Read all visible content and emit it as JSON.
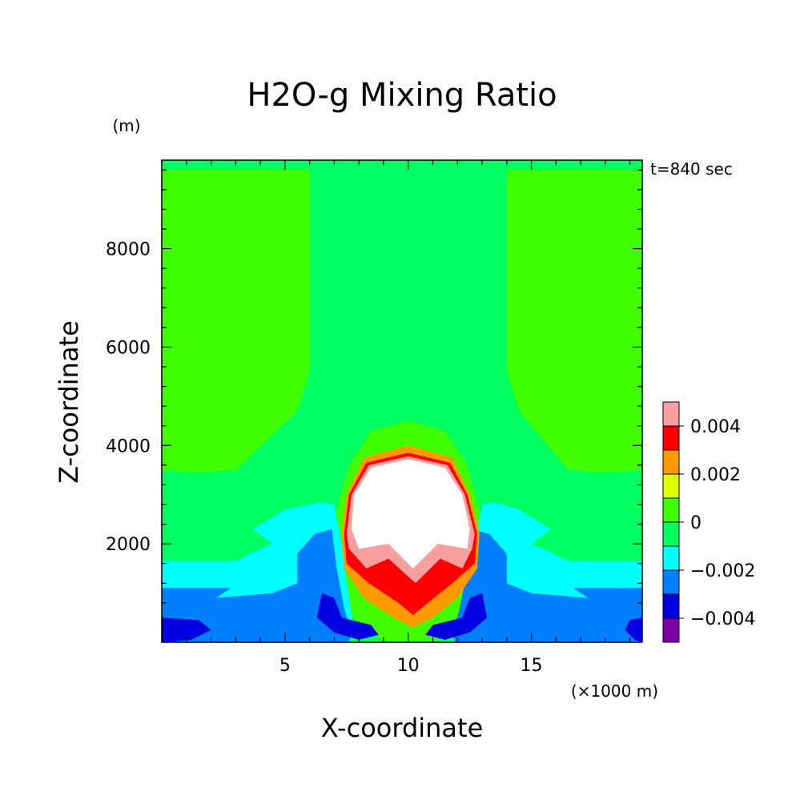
{
  "chart_data": {
    "type": "heatmap",
    "title": "H2O-g Mixing Ratio",
    "xlabel": "X-coordinate",
    "ylabel": "Z-coordinate",
    "x_unit": "(×1000 m)",
    "y_unit": "(m)",
    "time_label": "t=840 sec",
    "xlim": [
      0,
      19.5
    ],
    "ylim": [
      0,
      9800
    ],
    "x_ticks": [
      5,
      10,
      15
    ],
    "y_ticks": [
      2000,
      4000,
      6000,
      8000
    ],
    "x_tick_labels": [
      "5",
      "10",
      "15"
    ],
    "y_tick_labels": [
      "2000",
      "4000",
      "6000",
      "8000"
    ],
    "grid": false,
    "colorbar": {
      "levels": [
        -0.005,
        -0.004,
        -0.003,
        -0.002,
        -0.001,
        0,
        0.001,
        0.002,
        0.003,
        0.004,
        0.005
      ],
      "colors": [
        "#7f00a0",
        "#0000e0",
        "#0080ff",
        "#00ffff",
        "#00ff60",
        "#40ff00",
        "#e0ff00",
        "#ff9900",
        "#ff0000",
        "#f8a0a0"
      ],
      "tick_values": [
        -0.004,
        -0.002,
        0,
        0.002,
        0.004
      ],
      "tick_labels": [
        "−0.004",
        "−0.002",
        "0",
        "0.002",
        "0.004"
      ]
    },
    "background_value": -0.0005,
    "regions": [
      {
        "name": "upper-left-moist",
        "value": 0.0005,
        "points": [
          [
            0,
            9600
          ],
          [
            6.0,
            9600
          ],
          [
            6.0,
            5500
          ],
          [
            5.5,
            4700
          ],
          [
            3.0,
            3500
          ],
          [
            1.5,
            3450
          ],
          [
            0,
            3500
          ]
        ]
      },
      {
        "name": "upper-right-moist",
        "value": 0.0005,
        "points": [
          [
            14.0,
            9600
          ],
          [
            19.5,
            9600
          ],
          [
            19.5,
            3500
          ],
          [
            18.0,
            3450
          ],
          [
            16.5,
            3500
          ],
          [
            14.5,
            4700
          ],
          [
            14.0,
            5500
          ]
        ]
      },
      {
        "name": "plume-outer-moist",
        "value": 0.0005,
        "points": [
          [
            7.6,
            3600
          ],
          [
            8.5,
            4300
          ],
          [
            10.0,
            4500
          ],
          [
            11.5,
            4300
          ],
          [
            12.4,
            3600
          ],
          [
            13.0,
            2500
          ],
          [
            13.2,
            1200
          ],
          [
            12.5,
            600
          ],
          [
            11.0,
            0
          ],
          [
            9.0,
            0
          ],
          [
            7.5,
            600
          ],
          [
            6.8,
            1200
          ],
          [
            7.0,
            2500
          ]
        ]
      },
      {
        "name": "left-dry-layer",
        "value": -0.0015,
        "points": [
          [
            0,
            1650
          ],
          [
            3.0,
            1650
          ],
          [
            4.0,
            1900
          ],
          [
            4.5,
            2000
          ],
          [
            3.7,
            2300
          ],
          [
            5.0,
            2700
          ],
          [
            6.5,
            2850
          ],
          [
            7.0,
            2800
          ],
          [
            7.3,
            2000
          ],
          [
            7.5,
            1200
          ],
          [
            7.8,
            300
          ],
          [
            7.6,
            0
          ],
          [
            0,
            0
          ]
        ]
      },
      {
        "name": "right-dry-layer",
        "value": -0.0015,
        "points": [
          [
            19.5,
            1650
          ],
          [
            16.5,
            1650
          ],
          [
            15.5,
            1900
          ],
          [
            15.0,
            2000
          ],
          [
            15.8,
            2300
          ],
          [
            14.5,
            2700
          ],
          [
            13.5,
            2850
          ],
          [
            13.0,
            2800
          ],
          [
            12.7,
            2000
          ],
          [
            12.5,
            1200
          ],
          [
            12.2,
            300
          ],
          [
            12.4,
            0
          ],
          [
            19.5,
            0
          ]
        ]
      },
      {
        "name": "left-drier-layer",
        "value": -0.0025,
        "points": [
          [
            0,
            1100
          ],
          [
            2.8,
            1100
          ],
          [
            2.2,
            900
          ],
          [
            4.5,
            1000
          ],
          [
            5.5,
            1200
          ],
          [
            5.5,
            1800
          ],
          [
            6.2,
            2200
          ],
          [
            6.9,
            2300
          ],
          [
            7.1,
            1500
          ],
          [
            7.4,
            700
          ],
          [
            7.7,
            200
          ],
          [
            7.6,
            0
          ],
          [
            0,
            0
          ]
        ]
      },
      {
        "name": "right-drier-layer",
        "value": -0.0025,
        "points": [
          [
            19.5,
            1100
          ],
          [
            16.7,
            1100
          ],
          [
            17.3,
            900
          ],
          [
            15.0,
            1000
          ],
          [
            14.0,
            1200
          ],
          [
            14.0,
            1800
          ],
          [
            13.3,
            2200
          ],
          [
            12.6,
            2300
          ],
          [
            12.4,
            1500
          ],
          [
            12.1,
            700
          ],
          [
            11.8,
            200
          ],
          [
            11.9,
            0
          ],
          [
            19.5,
            0
          ]
        ]
      },
      {
        "name": "left-driest-patch",
        "value": -0.0035,
        "points": [
          [
            0,
            500
          ],
          [
            1.5,
            450
          ],
          [
            2.0,
            250
          ],
          [
            1.2,
            50
          ],
          [
            0,
            0
          ]
        ]
      },
      {
        "name": "left-driest-core",
        "value": -0.0035,
        "points": [
          [
            6.5,
            1000
          ],
          [
            7.0,
            900
          ],
          [
            7.3,
            500
          ],
          [
            8.5,
            350
          ],
          [
            8.8,
            150
          ],
          [
            8.0,
            50
          ],
          [
            7.0,
            200
          ],
          [
            6.3,
            500
          ]
        ]
      },
      {
        "name": "right-driest-core",
        "value": -0.0035,
        "points": [
          [
            13.0,
            1000
          ],
          [
            12.5,
            900
          ],
          [
            12.2,
            500
          ],
          [
            11.0,
            350
          ],
          [
            10.7,
            150
          ],
          [
            11.5,
            50
          ],
          [
            12.5,
            200
          ],
          [
            13.2,
            500
          ]
        ]
      },
      {
        "name": "right-driest-patch",
        "value": -0.0035,
        "points": [
          [
            19.5,
            500
          ],
          [
            19.0,
            450
          ],
          [
            18.8,
            250
          ],
          [
            19.2,
            50
          ],
          [
            19.5,
            0
          ]
        ]
      },
      {
        "name": "plume-ring-yellow",
        "value": 0.0025,
        "points": [
          [
            7.5,
            3000
          ],
          [
            8.2,
            3750
          ],
          [
            10.0,
            4000
          ],
          [
            11.8,
            3750
          ],
          [
            12.5,
            3000
          ],
          [
            12.9,
            2200
          ],
          [
            12.8,
            1500
          ],
          [
            12.0,
            900
          ],
          [
            11.0,
            500
          ],
          [
            10.2,
            300
          ],
          [
            9.4,
            500
          ],
          [
            8.2,
            900
          ],
          [
            7.4,
            1500
          ],
          [
            7.3,
            2200
          ]
        ]
      },
      {
        "name": "plume-ring-orange",
        "value": 0.0035,
        "points": [
          [
            7.6,
            3000
          ],
          [
            8.3,
            3650
          ],
          [
            10.0,
            3850
          ],
          [
            11.7,
            3650
          ],
          [
            12.4,
            3000
          ],
          [
            12.8,
            2200
          ],
          [
            12.7,
            1600
          ],
          [
            11.8,
            1200
          ],
          [
            10.8,
            800
          ],
          [
            10.2,
            550
          ],
          [
            9.6,
            800
          ],
          [
            8.4,
            1200
          ],
          [
            7.5,
            1600
          ],
          [
            7.4,
            2200
          ]
        ]
      },
      {
        "name": "plume-ring-red",
        "value": 0.0045,
        "points": [
          [
            7.7,
            3000
          ],
          [
            8.4,
            3600
          ],
          [
            10.0,
            3780
          ],
          [
            11.6,
            3600
          ],
          [
            12.3,
            3000
          ],
          [
            12.7,
            2200
          ],
          [
            12.6,
            1900
          ],
          [
            12.2,
            1500
          ],
          [
            11.3,
            1700
          ],
          [
            10.3,
            1200
          ],
          [
            9.2,
            1700
          ],
          [
            8.3,
            1500
          ],
          [
            7.6,
            1900
          ],
          [
            7.5,
            2200
          ]
        ]
      },
      {
        "name": "plume-ring-pink",
        "value": 0.0055,
        "points": [
          [
            7.8,
            3000
          ],
          [
            8.5,
            3550
          ],
          [
            10.0,
            3720
          ],
          [
            11.5,
            3550
          ],
          [
            12.2,
            3000
          ],
          [
            12.5,
            2300
          ],
          [
            12.4,
            1900
          ],
          [
            11.2,
            2000
          ],
          [
            10.2,
            1500
          ],
          [
            9.2,
            2000
          ],
          [
            8.0,
            1900
          ],
          [
            7.7,
            2300
          ]
        ]
      },
      {
        "name": "plume-core-white",
        "value": 0.006,
        "points": [
          [
            7.9,
            3000
          ],
          [
            8.6,
            3500
          ],
          [
            10.0,
            3680
          ],
          [
            11.4,
            3500
          ],
          [
            12.1,
            3000
          ],
          [
            12.4,
            2400
          ],
          [
            12.2,
            2000
          ],
          [
            11.2,
            2150
          ],
          [
            10.2,
            1700
          ],
          [
            9.2,
            2150
          ],
          [
            8.1,
            2050
          ],
          [
            7.8,
            2400
          ]
        ]
      }
    ]
  }
}
